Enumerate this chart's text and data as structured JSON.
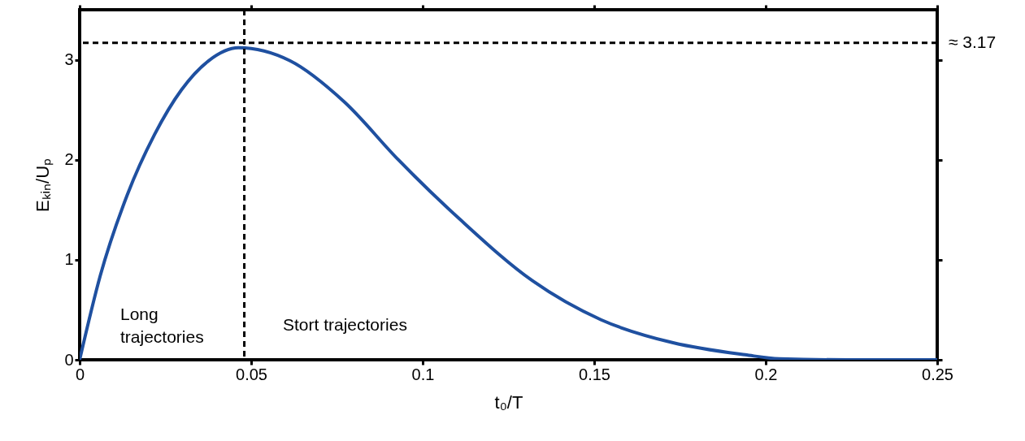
{
  "chart_data": {
    "type": "line",
    "xlabel": "t₀/T",
    "ylabel": "Eₖᵢₙ/Uₚ",
    "x": [
      0,
      0.006,
      0.0139,
      0.0218,
      0.0297,
      0.0376,
      0.0463,
      0.0613,
      0.0771,
      0.0929,
      0.111,
      0.132,
      0.152,
      0.173,
      0.194,
      0.204,
      0.224,
      0.25
    ],
    "series": [
      {
        "color": "#1f50a0",
        "values": [
          0,
          0.84,
          1.65,
          2.25,
          2.7,
          2.99,
          3.12,
          2.99,
          2.58,
          2.0,
          1.4,
          0.79,
          0.4,
          0.17,
          0.05,
          0.01,
          0,
          0
        ]
      }
    ],
    "xlim": [
      0,
      0.25
    ],
    "xticks": [
      0,
      0.05,
      0.1,
      0.15,
      0.2,
      0.25
    ],
    "ylim": [
      0,
      3.5
    ],
    "yticks": [
      0,
      1,
      2,
      3
    ],
    "ref_lines": [
      {
        "axis": "y",
        "value": 3.17,
        "label": "≈ 3.17",
        "line_style": "dashed",
        "color": "#000000"
      },
      {
        "axis": "x",
        "value": 0.048,
        "line_style": "dashed",
        "color": "#000000"
      }
    ],
    "annotations": [
      "Long\ntrajectories",
      "Stort trajectories"
    ],
    "grid": false,
    "marker": "none",
    "line_style": "solid"
  }
}
